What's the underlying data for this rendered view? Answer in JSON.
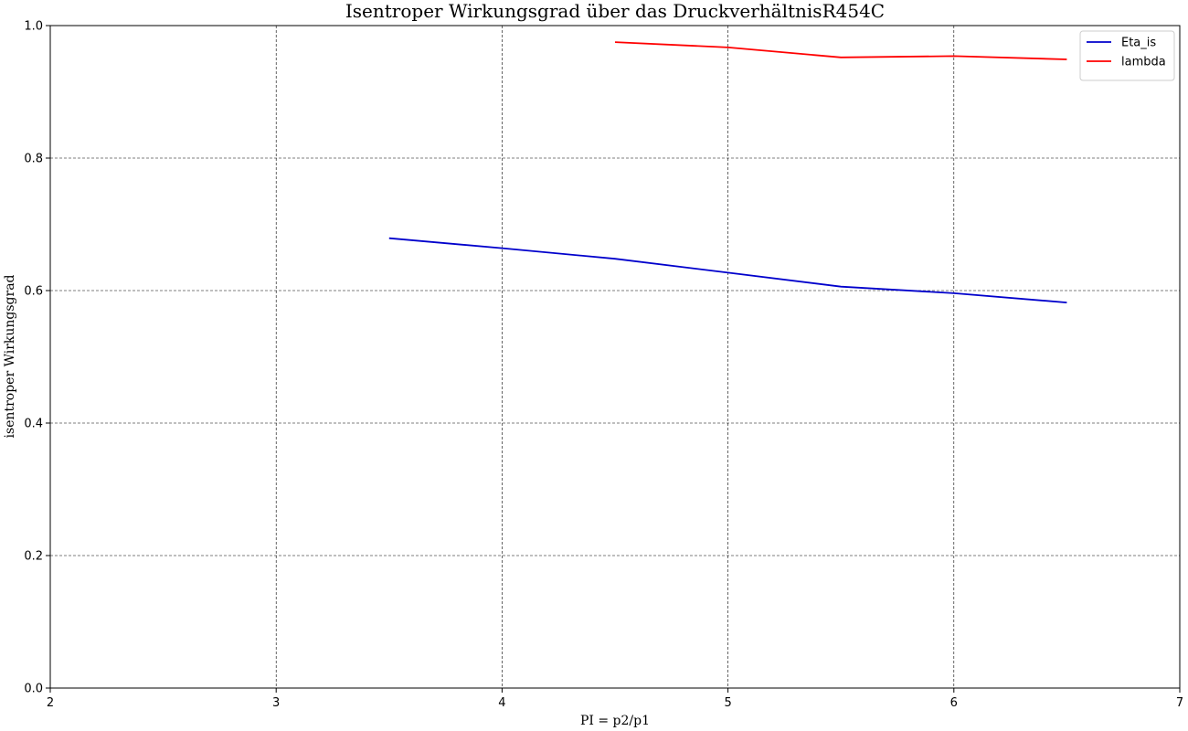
{
  "chart_data": {
    "type": "line",
    "title": "Isentroper Wirkungsgrad über das DruckverhältnisR454C",
    "xlabel": "PI = p2/p1",
    "ylabel": "isentroper Wirkungsgrad",
    "xlim": [
      2,
      7
    ],
    "ylim": [
      0.0,
      1.0
    ],
    "xticks": [
      "2",
      "3",
      "4",
      "5",
      "6",
      "7"
    ],
    "yticks": [
      "0.0",
      "0.2",
      "0.4",
      "0.6",
      "0.8",
      "1.0"
    ],
    "grid": true,
    "legend_position": "top-right",
    "series": [
      {
        "name": "Eta_is",
        "color": "#0000cc",
        "x": [
          3.5,
          4.0,
          4.5,
          5.0,
          5.5,
          6.0,
          6.5
        ],
        "y": [
          0.679,
          0.664,
          0.648,
          0.627,
          0.606,
          0.596,
          0.582
        ]
      },
      {
        "name": "lambda",
        "color": "#ff0000",
        "x": [
          4.5,
          5.0,
          5.5,
          6.0,
          6.5
        ],
        "y": [
          0.975,
          0.967,
          0.952,
          0.954,
          0.949
        ]
      }
    ]
  }
}
